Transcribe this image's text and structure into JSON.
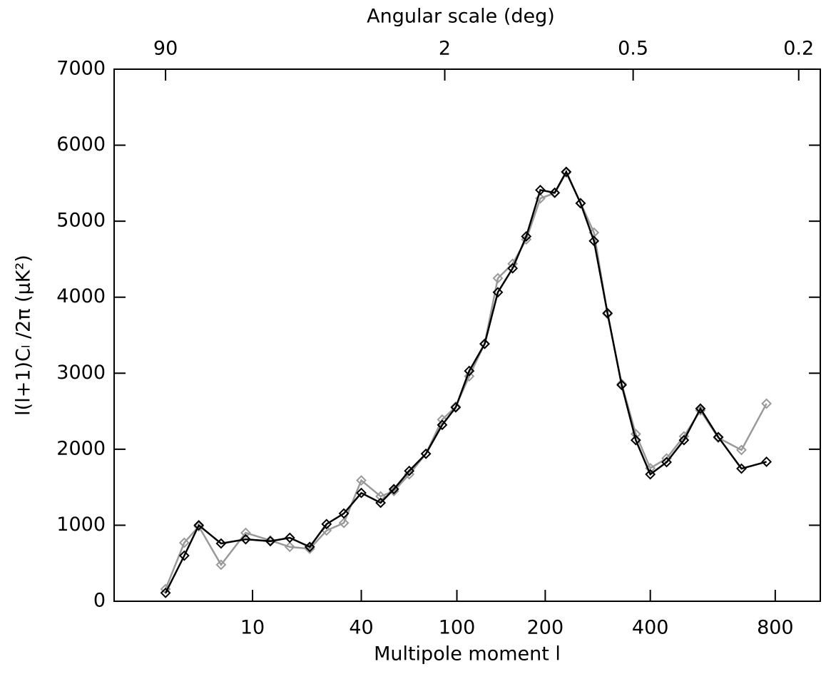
{
  "chart_data": {
    "type": "line",
    "xlabel": "Multipole moment l",
    "ylabel": "l(l+1)Cₗ /2π (μK²)",
    "x2label": "Angular scale (deg)",
    "x": [
      2,
      3,
      4,
      6,
      9,
      13,
      17,
      22,
      27,
      33,
      40,
      49,
      56,
      65,
      76,
      88,
      99,
      111,
      126,
      140,
      157,
      174,
      193,
      214,
      232,
      256,
      280,
      306,
      335,
      366,
      400,
      441,
      488,
      536,
      592,
      671,
      765
    ],
    "series": [
      {
        "color": "#000000",
        "values": [
          110,
          600,
          1000,
          760,
          815,
          790,
          835,
          715,
          1015,
          1155,
          1425,
          1295,
          1475,
          1715,
          1940,
          2320,
          2550,
          3030,
          3385,
          4065,
          4380,
          4800,
          5410,
          5375,
          5650,
          5235,
          4740,
          3790,
          2845,
          2120,
          1670,
          1830,
          2120,
          2535,
          2160,
          1745,
          1835
        ]
      },
      {
        "color": "#999999",
        "values": [
          160,
          770,
          985,
          480,
          900,
          800,
          715,
          690,
          930,
          1030,
          1590,
          1380,
          1450,
          1670,
          1940,
          2390,
          2560,
          2960,
          3390,
          4250,
          4440,
          4760,
          5300,
          5370,
          5640,
          5240,
          4850,
          3780,
          2860,
          2200,
          1750,
          1880,
          2170,
          2510,
          2150,
          1990,
          2600
        ]
      }
    ],
    "xlim": [
      0.5,
      1000
    ],
    "xticks": [
      10,
      40,
      100,
      200,
      400,
      800
    ],
    "x2ticks": [
      90,
      2,
      0.5,
      0.2
    ],
    "ylim": [
      0,
      7000
    ],
    "yticks": [
      0,
      1000,
      2000,
      3000,
      4000,
      5000,
      6000,
      7000
    ]
  }
}
